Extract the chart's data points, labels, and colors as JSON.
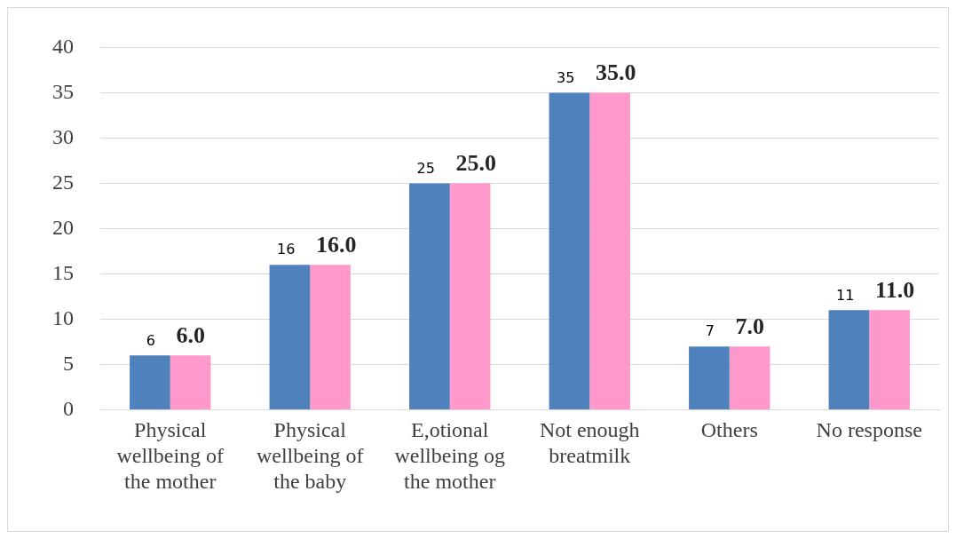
{
  "chart_data": {
    "type": "bar",
    "categories": [
      "Physical wellbeing of the mother",
      "Physical wellbeing of the baby",
      "E,otional wellbeing og the mother",
      "Not enough breatmilk",
      "Others",
      "No response"
    ],
    "series": [
      {
        "color": "#4f81bd",
        "values": [
          6,
          16,
          25,
          35,
          7,
          11
        ],
        "value_labels": [
          "6",
          "16",
          "25",
          "35",
          "7",
          "11"
        ]
      },
      {
        "color": "#ff99cc",
        "values": [
          6,
          16,
          25,
          35,
          7,
          11
        ],
        "value_labels": [
          "6.0",
          "16.0",
          "25.0",
          "35.0",
          "7.0",
          "11.0"
        ]
      }
    ],
    "ylim": [
      0,
      40
    ],
    "yticks": [
      0,
      5,
      10,
      15,
      20,
      25,
      30,
      35,
      40
    ],
    "grid": "y",
    "legend": false
  }
}
